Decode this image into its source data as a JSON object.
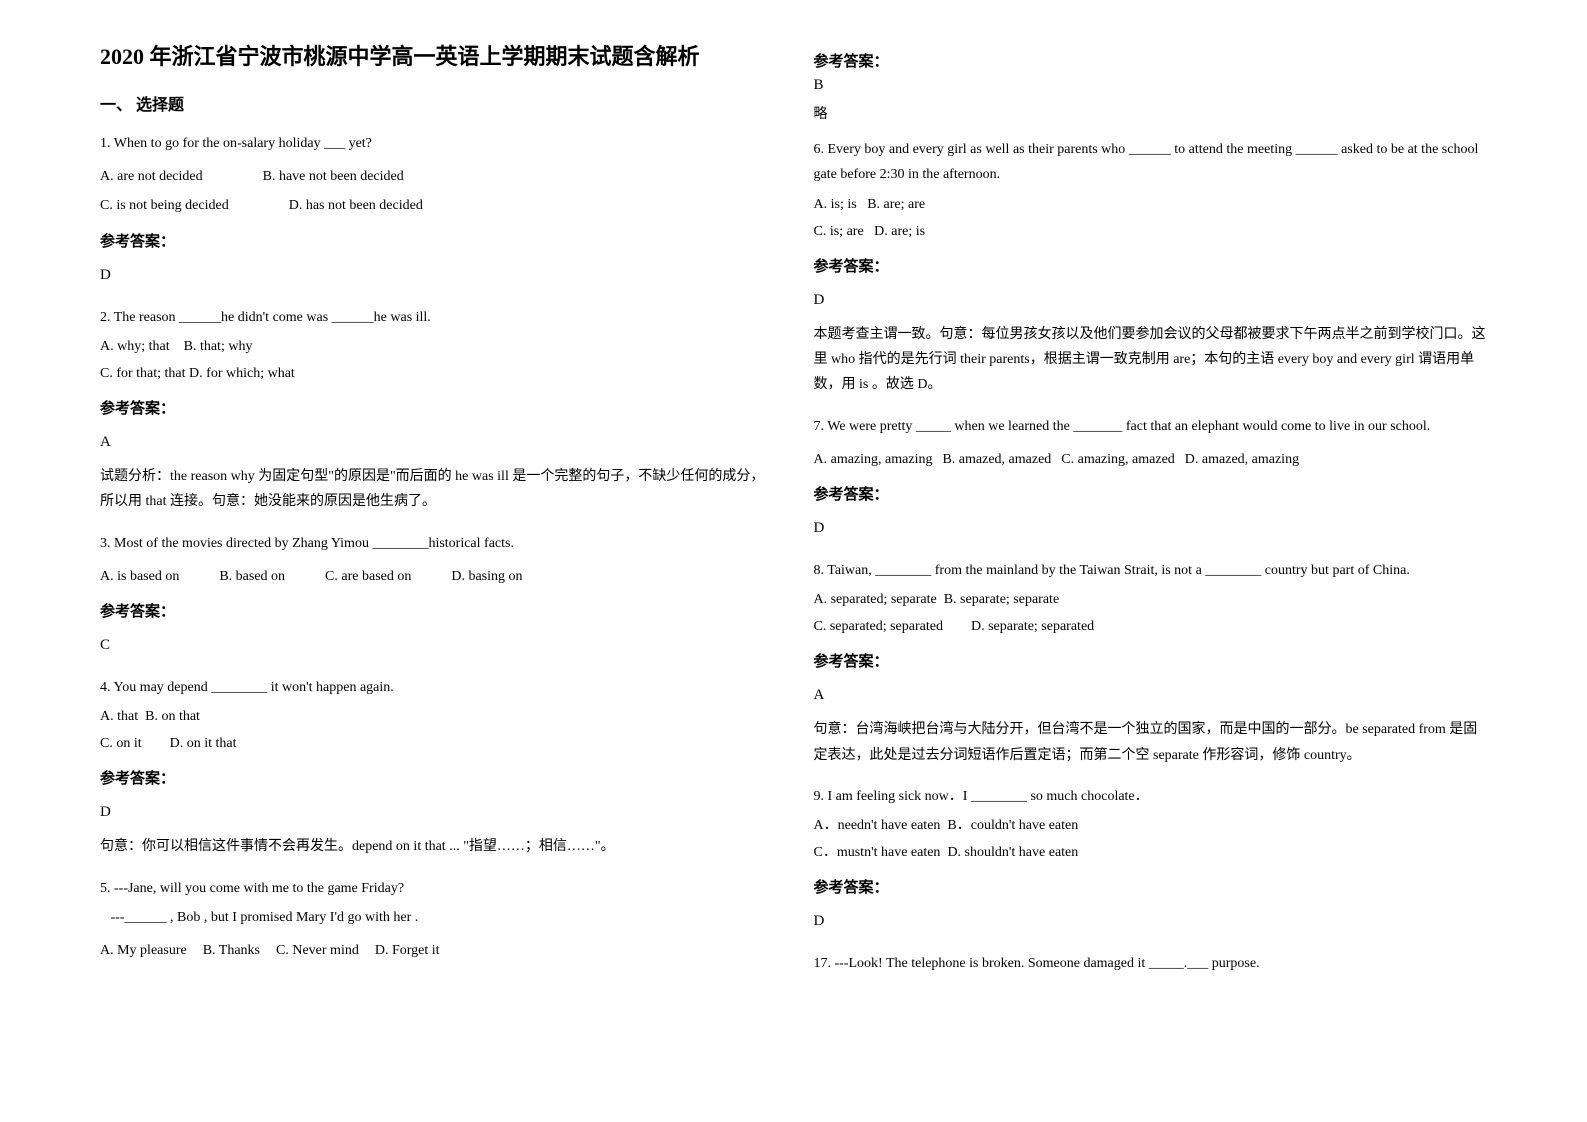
{
  "title": "2020 年浙江省宁波市桃源中学高一英语上学期期末试题含解析",
  "section1_header": "一、 选择题",
  "q1": {
    "text": "1. When to go for the on-salary holiday ___ yet?",
    "optA": "A. are not decided",
    "optB": "B. have not been decided",
    "optC": "C. is not being decided",
    "optD": "D. has not been decided",
    "ans_label": "参考答案：",
    "ans": "D"
  },
  "q2": {
    "text": "2. The reason ______he didn't come was ______he was ill.",
    "optA": "A. why; that",
    "optB": "B. that; why",
    "optC": "C. for that; that",
    "optD": "D. for which; what",
    "ans_label": "参考答案：",
    "ans": "A",
    "analysis": "试题分析：the reason why 为固定句型\"的原因是\"而后面的 he was ill 是一个完整的句子，不缺少任何的成分，所以用 that 连接。句意：她没能来的原因是他生病了。"
  },
  "q3": {
    "text": "3. Most of the movies directed by Zhang Yimou ________historical facts.",
    "optA": "A. is based on",
    "optB": "B. based on",
    "optC": "C. are based on",
    "optD": "D. basing on",
    "ans_label": "参考答案：",
    "ans": "C"
  },
  "q4": {
    "text": "4. You may depend ________ it won't happen again.",
    "optA": "A. that",
    "optB": "B. on that",
    "optC": "C. on it",
    "optD": "D. on it that",
    "ans_label": "参考答案：",
    "ans": "D",
    "analysis": "句意：你可以相信这件事情不会再发生。depend on it that ... \"指望……；相信……\"。"
  },
  "q5": {
    "line1": "5. ---Jane, will you come with me to the game Friday?",
    "line2": "   ---______ , Bob , but I promised Mary I'd go with her .",
    "optA": "A. My pleasure",
    "optB": "B. Thanks",
    "optC": "C. Never mind",
    "optD": "D. Forget it",
    "ans_label": "参考答案：",
    "ans": "B",
    "extra": "略"
  },
  "q6": {
    "text": "6. Every boy and every girl as well as their parents who ______ to attend the meeting ______ asked to be at the school gate before 2:30 in the afternoon.",
    "optA": "A. is; is",
    "optB": "B. are; are",
    "optC": "C. is; are",
    "optD": "D. are; is",
    "ans_label": "参考答案：",
    "ans": "D",
    "analysis": "本题考查主谓一致。句意：每位男孩女孩以及他们要参加会议的父母都被要求下午两点半之前到学校门口。这里 who 指代的是先行词 their parents，根据主谓一致克制用 are；本句的主语 every boy and every girl 谓语用单数，用 is 。故选 D。"
  },
  "q7": {
    "text": "7. We were pretty _____ when we learned the _______ fact that an elephant would come to live in our school.",
    "optA": "A. amazing, amazing",
    "optB": "B. amazed, amazed",
    "optC": "C. amazing, amazed",
    "optD": "D. amazed, amazing",
    "ans_label": "参考答案：",
    "ans": "D"
  },
  "q8": {
    "text": "8. Taiwan, ________ from the mainland by the Taiwan Strait, is not a ________ country but part of China.",
    "optA": "A. separated; separate",
    "optB": "B. separate; separate",
    "optC": "C. separated; separated",
    "optD": "D. separate; separated",
    "ans_label": "参考答案：",
    "ans": "A",
    "analysis": "句意：台湾海峡把台湾与大陆分开，但台湾不是一个独立的国家，而是中国的一部分。be separated from 是固定表达，此处是过去分词短语作后置定语；而第二个空 separate 作形容词，修饰 country。"
  },
  "q9": {
    "text": "9. I am feeling sick now．I ________ so much chocolate．",
    "optA": "A．needn't have eaten",
    "optB": "B．couldn't have eaten",
    "optC": "C．mustn't have eaten",
    "optD": "D. shouldn't have eaten",
    "ans_label": "参考答案：",
    "ans": "D"
  },
  "q17": {
    "text": "17. ---Look! The telephone is broken. Someone damaged it _____.___ purpose."
  }
}
